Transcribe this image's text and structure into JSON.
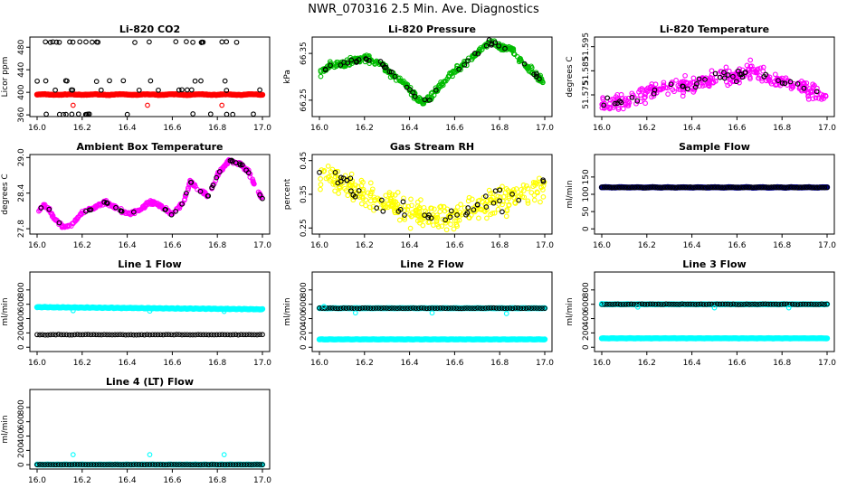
{
  "figure_title": "NWR_070316  2.5 Min. Ave. Diagnostics",
  "colors": {
    "axis": "#000000",
    "red": "#ff0000",
    "green": "#00bb00",
    "magenta": "#ff00ff",
    "yellow": "#ffff00",
    "navy": "#000088",
    "cyan": "#00ffff",
    "black": "#000000"
  },
  "chart_data": [
    {
      "id": "co2",
      "type": "scatter",
      "title": "Li-820 CO2",
      "ylabel": "Licor ppm",
      "xlim": [
        15.98,
        17.02
      ],
      "ylim": [
        357,
        498
      ],
      "xticks": [
        "16.0",
        "16.2",
        "16.4",
        "16.6",
        "16.8",
        "17.0"
      ],
      "yticks": [
        "360",
        "400",
        "440",
        "480"
      ],
      "series": [
        {
          "name": "dense",
          "style": "filled-line",
          "color": "#ff0000",
          "gen": "flat",
          "y0": 396,
          "amp": 1.2,
          "freq": 3
        },
        {
          "name": "mid-circles",
          "style": "circle",
          "color": "#000000",
          "gen": "discrete",
          "levels": [
            361,
            404,
            420,
            489
          ],
          "weights": [
            0.15,
            0.3,
            0.35,
            0.2
          ],
          "n": 120
        },
        {
          "name": "red-outliers",
          "style": "circle",
          "color": "#ff0000",
          "x": [
            16.16,
            16.49,
            16.82
          ],
          "y": [
            377,
            377,
            377
          ]
        }
      ]
    },
    {
      "id": "pressure",
      "type": "scatter",
      "title": "Li-820 Pressure",
      "ylabel": "kPa",
      "xlim": [
        15.98,
        17.02
      ],
      "ylim": [
        66.215,
        66.385
      ],
      "xticks": [
        "16.0",
        "16.2",
        "16.4",
        "16.6",
        "16.8",
        "17.0"
      ],
      "yticks": [
        "66.25",
        "66.35"
      ],
      "curve": {
        "x": [
          16.0,
          16.05,
          16.12,
          16.2,
          16.28,
          16.33,
          16.38,
          16.43,
          16.46,
          16.5,
          16.55,
          16.6,
          16.65,
          16.7,
          16.75,
          16.8,
          16.85,
          16.9,
          16.95,
          17.0
        ],
        "y": [
          66.305,
          66.325,
          66.33,
          66.34,
          66.325,
          66.3,
          66.285,
          66.255,
          66.245,
          66.26,
          66.29,
          66.31,
          66.33,
          66.35,
          66.375,
          66.365,
          66.36,
          66.33,
          66.31,
          66.285
        ]
      },
      "series": [
        {
          "name": "dense",
          "style": "circle",
          "color": "#00bb00",
          "gen": "curve",
          "n": 380,
          "noise": 0.006
        },
        {
          "name": "sample",
          "style": "circle",
          "color": "#000000",
          "gen": "curve",
          "n": 45,
          "noise": 0.005
        }
      ]
    },
    {
      "id": "temperature",
      "type": "scatter",
      "title": "Li-820 Temperature",
      "ylabel": "degrees C",
      "xlim": [
        15.98,
        17.02
      ],
      "ylim": [
        51.566,
        51.599
      ],
      "xticks": [
        "16.0",
        "16.2",
        "16.4",
        "16.6",
        "16.8",
        "17.0"
      ],
      "yticks": [
        "51.575",
        "51.585",
        "51.595"
      ],
      "curve": {
        "x": [
          16.0,
          16.1,
          16.2,
          16.3,
          16.4,
          16.5,
          16.6,
          16.65,
          16.7,
          16.8,
          16.9,
          17.0
        ],
        "y": [
          51.571,
          51.572,
          51.576,
          51.578,
          51.579,
          51.582,
          51.583,
          51.586,
          51.584,
          51.58,
          51.578,
          51.574
        ]
      },
      "series": [
        {
          "name": "dense",
          "style": "circle",
          "color": "#ff00ff",
          "gen": "curve",
          "n": 330,
          "noise": 0.0028
        },
        {
          "name": "sample",
          "style": "circle",
          "color": "#000000",
          "gen": "curve",
          "n": 40,
          "noise": 0.002
        }
      ]
    },
    {
      "id": "ambient",
      "type": "scatter",
      "title": "Ambient Box Temperature",
      "ylabel": "degrees C",
      "xlim": [
        15.98,
        17.02
      ],
      "ylim": [
        27.71,
        29.05
      ],
      "xticks": [
        "16.0",
        "16.2",
        "16.4",
        "16.6",
        "16.8",
        "17.0"
      ],
      "yticks": [
        "27.8",
        "28.4",
        "29.0"
      ],
      "curve": {
        "x": [
          16.0,
          16.04,
          16.08,
          16.12,
          16.15,
          16.2,
          16.25,
          16.3,
          16.35,
          16.4,
          16.45,
          16.5,
          16.55,
          16.6,
          16.65,
          16.68,
          16.72,
          16.76,
          16.8,
          16.85,
          16.9,
          16.94,
          16.97,
          17.0
        ],
        "y": [
          28.1,
          28.2,
          27.95,
          27.82,
          27.85,
          28.08,
          28.15,
          28.25,
          28.15,
          28.05,
          28.1,
          28.25,
          28.18,
          28.05,
          28.25,
          28.6,
          28.45,
          28.35,
          28.7,
          28.95,
          28.9,
          28.75,
          28.5,
          28.3
        ]
      },
      "series": [
        {
          "name": "dense",
          "style": "circle",
          "color": "#ff00ff",
          "gen": "curve",
          "n": 330,
          "noise": 0.025
        },
        {
          "name": "sample",
          "style": "circle",
          "color": "#000000",
          "gen": "curve",
          "n": 40,
          "noise": 0.02
        }
      ]
    },
    {
      "id": "rh",
      "type": "scatter",
      "title": "Gas Stream RH",
      "ylabel": "percent",
      "xlim": [
        15.98,
        17.02
      ],
      "ylim": [
        0.232,
        0.468
      ],
      "xticks": [
        "16.0",
        "16.2",
        "16.4",
        "16.6",
        "16.8",
        "17.0"
      ],
      "yticks": [
        "0.25",
        "0.35",
        "0.45"
      ],
      "curve": {
        "x": [
          16.0,
          16.1,
          16.2,
          16.3,
          16.4,
          16.5,
          16.6,
          16.7,
          16.8,
          16.9,
          17.0
        ],
        "y": [
          0.41,
          0.39,
          0.35,
          0.32,
          0.3,
          0.28,
          0.29,
          0.31,
          0.33,
          0.35,
          0.39
        ]
      },
      "series": [
        {
          "name": "dense",
          "style": "circle",
          "color": "#ffff00",
          "gen": "curve",
          "n": 340,
          "noise": 0.035
        },
        {
          "name": "sample",
          "style": "circle",
          "color": "#000000",
          "gen": "curve",
          "n": 45,
          "noise": 0.03
        }
      ]
    },
    {
      "id": "sample",
      "type": "scatter",
      "title": "Sample Flow",
      "ylabel": "ml/min",
      "xlim": [
        15.98,
        17.02
      ],
      "ylim": [
        -15,
        215
      ],
      "xticks": [
        "16.0",
        "16.2",
        "16.4",
        "16.6",
        "16.8",
        "17.0"
      ],
      "yticks": [
        "0",
        "50",
        "100",
        "150"
      ],
      "series": [
        {
          "name": "dense",
          "style": "filled-line",
          "color": "#000088",
          "gen": "flat",
          "y0": 120,
          "amp": 1.5,
          "freq": 5
        },
        {
          "name": "sample",
          "style": "circle",
          "color": "#000000",
          "gen": "flat-pts",
          "y0": 120,
          "n": 90,
          "noise": 0.8
        }
      ]
    },
    {
      "id": "line1",
      "type": "scatter",
      "title": "Line 1 Flow",
      "ylabel": "ml/min",
      "xlim": [
        15.98,
        17.02
      ],
      "ylim": [
        -60,
        1050
      ],
      "xticks": [
        "16.0",
        "16.2",
        "16.4",
        "16.6",
        "16.8",
        "17.0"
      ],
      "yticks": [
        "0",
        "200",
        "400",
        "600",
        "800"
      ],
      "series": [
        {
          "name": "cyan",
          "style": "filled-line",
          "color": "#00ffff",
          "gen": "slope",
          "y0": 560,
          "y1": 530,
          "amp": 6,
          "freq": 9
        },
        {
          "name": "black",
          "style": "circle",
          "color": "#000000",
          "gen": "flat-pts",
          "y0": 175,
          "n": 85,
          "noise": 3
        },
        {
          "name": "cyan-low",
          "style": "circle",
          "color": "#00ffff",
          "x": [
            16.16,
            16.5,
            16.83
          ],
          "y": [
            510,
            505,
            500
          ]
        }
      ]
    },
    {
      "id": "line2",
      "type": "scatter",
      "title": "Line 2 Flow",
      "ylabel": "ml/min",
      "xlim": [
        15.98,
        17.02
      ],
      "ylim": [
        -60,
        1050
      ],
      "xticks": [
        "16.0",
        "16.2",
        "16.4",
        "16.6",
        "16.8",
        "17.0"
      ],
      "yticks": [
        "0",
        "200",
        "400",
        "600",
        "800"
      ],
      "series": [
        {
          "name": "cyan",
          "style": "filled-line",
          "color": "#00ffff",
          "gen": "flat",
          "y0": 110,
          "amp": 4,
          "freq": 9
        },
        {
          "name": "cyan-high",
          "style": "filled-line",
          "color": "#00ffff",
          "gen": "flat",
          "y0": 545,
          "amp": 3,
          "freq": 7
        },
        {
          "name": "black",
          "style": "circle",
          "color": "#000000",
          "gen": "flat-pts",
          "y0": 545,
          "n": 85,
          "noise": 3
        },
        {
          "name": "cyan-low",
          "style": "circle",
          "color": "#00ffff",
          "x": [
            16.02,
            16.16,
            16.5,
            16.83
          ],
          "y": [
            570,
            480,
            480,
            470
          ]
        }
      ]
    },
    {
      "id": "line3",
      "type": "scatter",
      "title": "Line 3 Flow",
      "ylabel": "ml/min",
      "xlim": [
        15.98,
        17.02
      ],
      "ylim": [
        -60,
        1050
      ],
      "xticks": [
        "16.0",
        "16.2",
        "16.4",
        "16.6",
        "16.8",
        "17.0"
      ],
      "yticks": [
        "0",
        "200",
        "400",
        "600",
        "800"
      ],
      "series": [
        {
          "name": "cyan",
          "style": "filled-line",
          "color": "#00ffff",
          "gen": "flat",
          "y0": 125,
          "amp": 4,
          "freq": 9
        },
        {
          "name": "cyan-high",
          "style": "filled-line",
          "color": "#00ffff",
          "gen": "flat",
          "y0": 600,
          "amp": 3,
          "freq": 7
        },
        {
          "name": "black",
          "style": "circle",
          "color": "#000000",
          "gen": "flat-pts",
          "y0": 600,
          "n": 85,
          "noise": 3
        },
        {
          "name": "cyan-low",
          "style": "circle",
          "color": "#00ffff",
          "x": [
            16.0,
            16.16,
            16.5,
            16.83
          ],
          "y": [
            610,
            560,
            550,
            550
          ]
        }
      ]
    },
    {
      "id": "line4",
      "type": "scatter",
      "title": "Line 4 (LT) Flow",
      "ylabel": "ml/min",
      "xlim": [
        15.98,
        17.02
      ],
      "ylim": [
        -60,
        1050
      ],
      "xticks": [
        "16.0",
        "16.2",
        "16.4",
        "16.6",
        "16.8",
        "17.0"
      ],
      "yticks": [
        "0",
        "200",
        "400",
        "600",
        "800"
      ],
      "series": [
        {
          "name": "cyan",
          "style": "filled-line",
          "color": "#00ffff",
          "gen": "flat",
          "y0": 2,
          "amp": 2,
          "freq": 9
        },
        {
          "name": "black",
          "style": "circle",
          "color": "#000000",
          "gen": "flat-pts",
          "y0": 2,
          "n": 85,
          "noise": 1
        },
        {
          "name": "cyan-high",
          "style": "circle",
          "color": "#00ffff",
          "x": [
            16.16,
            16.5,
            16.83
          ],
          "y": [
            140,
            140,
            140
          ]
        }
      ]
    }
  ]
}
